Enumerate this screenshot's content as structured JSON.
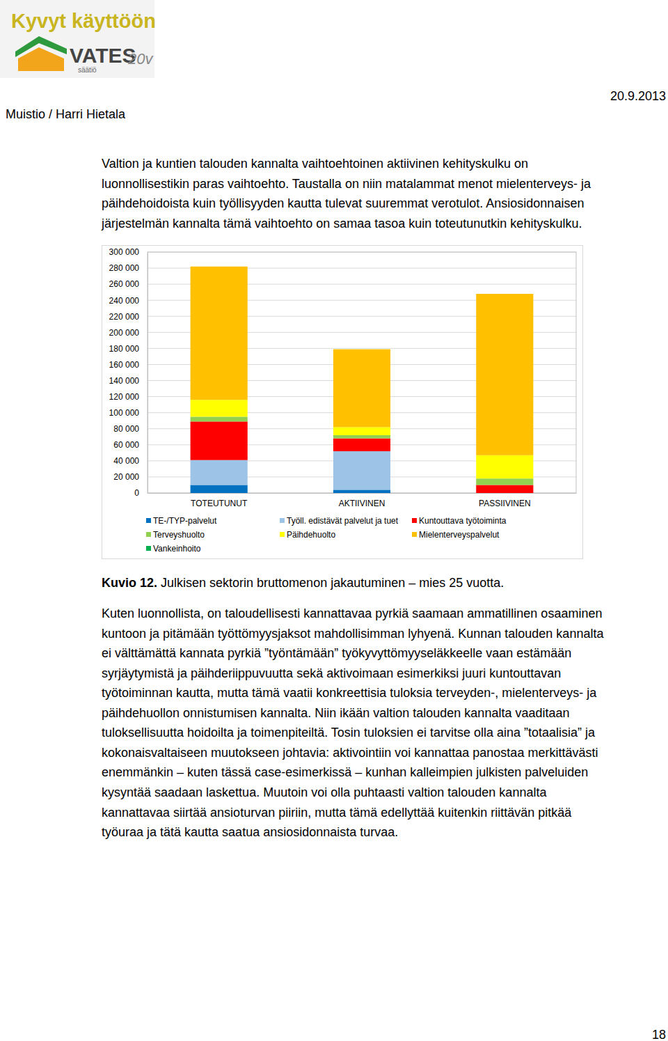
{
  "header": {
    "logo_text": "Kyvyt käyttöön",
    "logo_brand": "VATES",
    "logo_sub": "säätiö",
    "logo_anniversary": "20v",
    "memo": "Muistio / Harri Hietala",
    "date": "20.9.2013"
  },
  "paragraphs": [
    [
      "Valtion ja kuntien talouden kannalta vaihtoehtoinen aktiivinen kehityskulku on",
      "luonnollisestikin paras vaihtoehto. Taustalla on niin matalammat menot mielenterveys- ja",
      "päihdehoidoista kuin työllisyyden kautta tulevat suuremmat verotulot. Ansiosidonnaisen",
      "järjestelmän kannalta tämä vaihtoehto on samaa tasoa kuin toteutunutkin kehityskulku."
    ],
    [
      "Kuten luonnollista, on taloudellisesti kannattavaa pyrkiä saamaan ammatillinen osaaminen",
      "kuntoon ja pitämään työttömyysjaksot mahdollisimman lyhyenä. Kunnan talouden kannalta",
      "ei välttämättä kannata pyrkiä ”työntämään” työkyvyttömyyseläkkeelle vaan estämään",
      "syrjäytymistä ja päihderiippuvuutta sekä aktivoimaan esimerkiksi juuri kuntouttavan",
      "työtoiminnan kautta, mutta tämä vaatii konkreettisia tuloksia terveyden-, mielenterveys- ja",
      "päihdehuollon onnistumisen kannalta. Niin ikään valtion talouden kannalta vaaditaan",
      "tuloksellisuutta hoidoilta ja toimenpiteiltä. Tosin tuloksien ei tarvitse olla aina ”totaalisia” ja",
      "kokonaisvaltaiseen muutokseen johtavia: aktivointiin voi kannattaa panostaa merkittävästi",
      "enemmänkin – kuten tässä case-esimerkissä – kunhan kalleimpien julkisten palveluiden",
      "kysyntää saadaan laskettua. Muutoin voi olla puhtaasti valtion talouden kannalta",
      "kannattavaa siirtää ansioturvan piiriin, mutta tämä edellyttää kuitenkin riittävän pitkää",
      "työuraa ja tätä kautta saatua ansiosidonnaista turvaa."
    ]
  ],
  "caption": {
    "label": "Kuvio 12.",
    "text": "Julkisen sektorin bruttomenon jakautuminen – mies 25 vuotta."
  },
  "page_number": "18",
  "chart_data": {
    "type": "bar",
    "stacked": true,
    "grid": true,
    "legend": "bottom",
    "categories": [
      "TOTEUTUNUT",
      "AKTIIVINEN",
      "PASSIIVINEN"
    ],
    "series": [
      {
        "name": "TE-/TYP-palvelut",
        "color": "#0070c0",
        "values": [
          10000,
          4000,
          0
        ]
      },
      {
        "name": "Työll. edistävät palvelut ja tuet",
        "color": "#9dc3e6",
        "values": [
          31000,
          48000,
          0
        ]
      },
      {
        "name": "Kuntouttava työtoiminta",
        "color": "#ff0000",
        "values": [
          48000,
          16000,
          10000
        ]
      },
      {
        "name": "Terveyshuolto",
        "color": "#92d050",
        "values": [
          6000,
          4000,
          8000
        ]
      },
      {
        "name": "Päihdehuolto",
        "color": "#ffff00",
        "values": [
          21000,
          10000,
          29000
        ]
      },
      {
        "name": "Mielenterveyspalvelut",
        "color": "#ffc000",
        "values": [
          166000,
          97000,
          201000
        ]
      },
      {
        "name": "Vankeinhoito",
        "color": "#00b050",
        "values": [
          0,
          0,
          0
        ]
      }
    ],
    "ylim": [
      0,
      300000
    ],
    "yticks": [
      0,
      {
        "value": 20000,
        "label": "20 000"
      },
      {
        "value": 40000,
        "label": "40 000"
      },
      {
        "value": 60000,
        "label": "60 000"
      },
      {
        "value": 80000,
        "label": "80 000"
      },
      {
        "value": 100000,
        "label": "100 000"
      },
      {
        "value": 120000,
        "label": "120 000"
      },
      {
        "value": 140000,
        "label": "140 000"
      },
      {
        "value": 160000,
        "label": "160 000"
      },
      {
        "value": 180000,
        "label": "180 000"
      },
      {
        "value": 200000,
        "label": "200 000"
      },
      {
        "value": 220000,
        "label": "220 000"
      },
      {
        "value": 240000,
        "label": "240 000"
      },
      {
        "value": 260000,
        "label": "260 000"
      },
      {
        "value": 280000,
        "label": "280 000"
      },
      {
        "value": 300000,
        "label": "300 000"
      }
    ]
  }
}
